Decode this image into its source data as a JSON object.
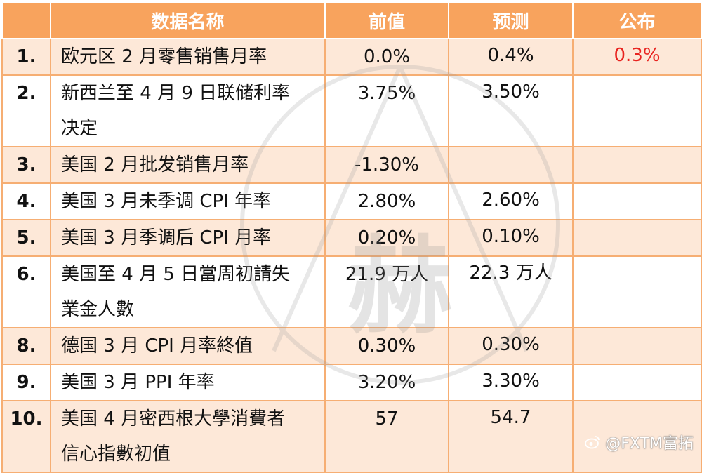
{
  "table": {
    "headers": [
      "",
      "数据名称",
      "前值",
      "预测",
      "公布"
    ],
    "rows": [
      {
        "num": "1.",
        "name": [
          "欧元区 2 月零售销售月率"
        ],
        "prev": "0.0%",
        "forecast": "0.4%",
        "published": "0.3%"
      },
      {
        "num": "2.",
        "name": [
          "新西兰至 4 月 9 日联储利率",
          "决定"
        ],
        "prev": "3.75%",
        "forecast": "3.50%",
        "published": ""
      },
      {
        "num": "3.",
        "name": [
          "美国 2 月批发销售月率"
        ],
        "prev": "-1.30%",
        "forecast": "",
        "published": ""
      },
      {
        "num": "4.",
        "name": [
          "美国 3 月未季调 CPI 年率"
        ],
        "prev": "2.80%",
        "forecast": "2.60%",
        "published": ""
      },
      {
        "num": "5.",
        "name": [
          "美国 3 月季调后 CPI 月率"
        ],
        "prev": "0.20%",
        "forecast": "0.10%",
        "published": ""
      },
      {
        "num": "6.",
        "name": [
          "美国至 4 月 5 日當周初請失",
          "業金人數"
        ],
        "prev": "21.9 万人",
        "forecast": "22.3 万人",
        "published": ""
      },
      {
        "num": "8.",
        "name": [
          "德国 3 月 CPI 月率終值"
        ],
        "prev": "0.30%",
        "forecast": "0.30%",
        "published": ""
      },
      {
        "num": "9.",
        "name": [
          "美国 3 月 PPI 年率"
        ],
        "prev": "3.20%",
        "forecast": "3.30%",
        "published": ""
      },
      {
        "num": "10.",
        "name": [
          "美国 4 月密西根大學消費者",
          "信心指數初值"
        ],
        "prev": "57",
        "forecast": "54.7",
        "published": ""
      }
    ]
  },
  "watermark": {
    "char": "赫"
  },
  "brand": {
    "label": "@FXTM富拓",
    "icon": "weibo-icon"
  },
  "colors": {
    "header_bg": "#f8a35d",
    "odd_row_bg": "#fde8d8",
    "border": "#f6ae73",
    "published_text": "#e8231f"
  }
}
